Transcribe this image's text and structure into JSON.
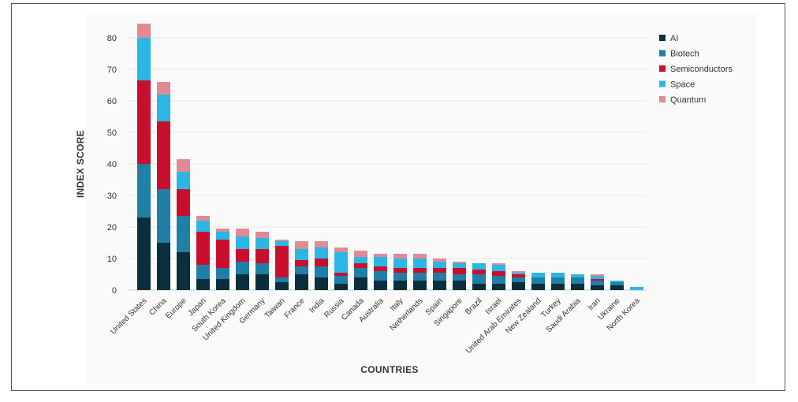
{
  "chart_data": {
    "type": "bar",
    "stacked": true,
    "title": "",
    "xlabel": "COUNTRIES",
    "ylabel": "INDEX SCORE",
    "ylim": [
      0,
      85
    ],
    "yticks": [
      0,
      10,
      20,
      30,
      40,
      50,
      60,
      70,
      80
    ],
    "grid": true,
    "legend_position": "top-right",
    "categories": [
      "United States",
      "China",
      "Europe",
      "Japan",
      "South Korea",
      "United Kingdom",
      "Germany",
      "Taiwan",
      "France",
      "India",
      "Russia",
      "Canada",
      "Australia",
      "Italy",
      "Netherlands",
      "Spain",
      "Singapore",
      "Brazil",
      "Israel",
      "United Arab Emirates",
      "New Zealand",
      "Turkey",
      "Saudi Arabia",
      "Iran",
      "Ukraine",
      "North Korea"
    ],
    "series": [
      {
        "name": "AI",
        "color": "#0b2e3c",
        "values": [
          23,
          15,
          12,
          3.5,
          3.5,
          5,
          5,
          2.5,
          5,
          4,
          2,
          4,
          3,
          3,
          3,
          3,
          3,
          2,
          2,
          2.5,
          2,
          2,
          2,
          1.5,
          1.5,
          0
        ]
      },
      {
        "name": "Biotech",
        "color": "#1f7fa6",
        "values": [
          17,
          17,
          11.5,
          4.5,
          3.5,
          4,
          3.5,
          1.5,
          2.5,
          3.5,
          2.5,
          3,
          3,
          2.5,
          2.5,
          2.5,
          2,
          3,
          2.5,
          1.5,
          2,
          2,
          2,
          1.5,
          1,
          0
        ]
      },
      {
        "name": "Semiconductors",
        "color": "#c8102e",
        "values": [
          26.5,
          21.5,
          8.5,
          10.5,
          9,
          4,
          4.5,
          10,
          2,
          2.5,
          1,
          1.5,
          1.5,
          1.5,
          1.5,
          1.5,
          2,
          1.5,
          1.5,
          1,
          0,
          0,
          0,
          0.5,
          0,
          0
        ]
      },
      {
        "name": "Space",
        "color": "#2bb6e6",
        "values": [
          13.5,
          8.5,
          5.5,
          3.5,
          2.5,
          4,
          3.5,
          1.5,
          3.5,
          3.5,
          6.5,
          2,
          3,
          3,
          3,
          2,
          1.5,
          2,
          2,
          0.5,
          1.5,
          1.5,
          1,
          1,
          0.5,
          1
        ]
      },
      {
        "name": "Quantum",
        "color": "#e08a94",
        "values": [
          4.5,
          4,
          4,
          1.5,
          1,
          2.5,
          2,
          0.5,
          2.5,
          2,
          1.5,
          2,
          1,
          1.5,
          1.5,
          1,
          0.5,
          0,
          0.5,
          0.5,
          0,
          0,
          0,
          0.5,
          0,
          0
        ]
      }
    ]
  }
}
